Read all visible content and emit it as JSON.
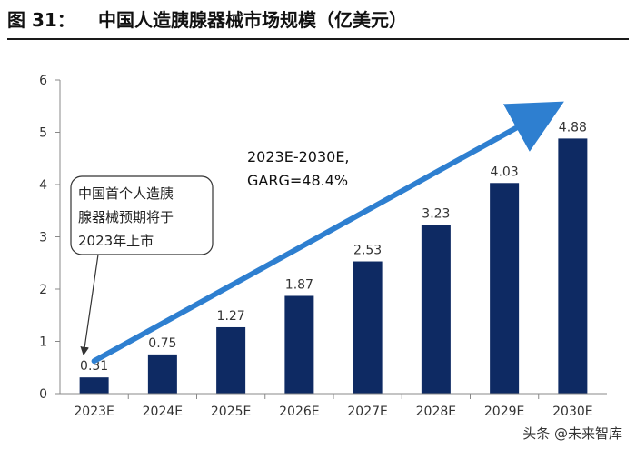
{
  "figure": {
    "label": "图 31：",
    "title": "中国人造胰腺器械市场规模（亿美元）"
  },
  "chart_data": {
    "type": "bar",
    "categories": [
      "2023E",
      "2024E",
      "2025E",
      "2026E",
      "2027E",
      "2028E",
      "2029E",
      "2030E"
    ],
    "values": [
      0.31,
      0.75,
      1.27,
      1.87,
      2.53,
      3.23,
      4.03,
      4.88
    ],
    "value_labels": [
      "0.31",
      "0.75",
      "1.27",
      "1.87",
      "2.53",
      "3.23",
      "4.03",
      "4.88"
    ],
    "ylim": [
      0,
      6
    ],
    "yticks": [
      0,
      1,
      2,
      3,
      4,
      5,
      6
    ],
    "grid": false,
    "bar_color": "#0e2a63",
    "trend_color": "#2e7fd0",
    "annotations": {
      "cagr_lines": [
        "2023E-2030E,",
        "GARG=48.4%"
      ],
      "callout_lines": [
        "中国首个人造胰",
        "腺器械预期将于",
        "2023年上市"
      ]
    }
  },
  "watermark": "头条 @未来智库"
}
